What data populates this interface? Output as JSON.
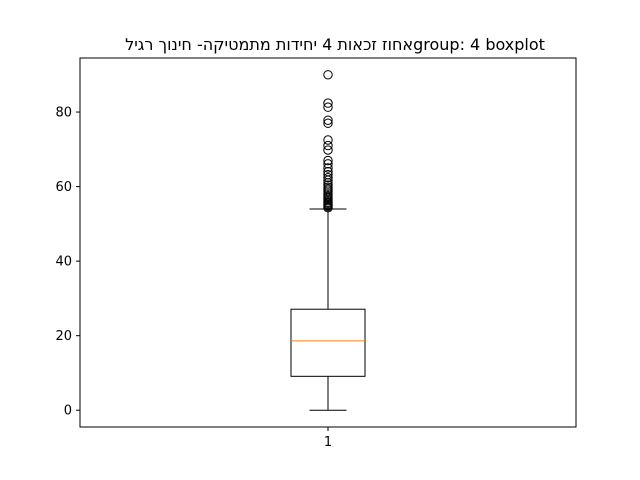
{
  "chart_data": {
    "type": "boxplot",
    "title": "אחוז זכאות 4 יחידות מתמטיקה-  חינוך רגילgroup: 4 boxplot",
    "xlabel": "",
    "ylabel": "",
    "categories": [
      "1"
    ],
    "ylim": [
      -4.5,
      94.5
    ],
    "yticks": [
      0,
      20,
      40,
      60,
      80
    ],
    "grid": false,
    "box": {
      "whisker_low": 0,
      "q1": 9.1,
      "median": 18.6,
      "q3": 27.1,
      "whisker_high": 54.0
    },
    "outliers": [
      54.3,
      54.6,
      54.9,
      55.2,
      55.5,
      55.8,
      56.2,
      56.6,
      57.0,
      57.4,
      57.8,
      58.3,
      58.8,
      59.3,
      59.8,
      60.4,
      61.0,
      61.7,
      62.4,
      63.2,
      64.0,
      65.0,
      66.1,
      67.0,
      69.8,
      71.0,
      72.5,
      77.0,
      77.8,
      81.3,
      82.4,
      90.0
    ],
    "colors": {
      "box": "#000000",
      "median": "#ff7f0e",
      "outlier": "#000000"
    }
  }
}
